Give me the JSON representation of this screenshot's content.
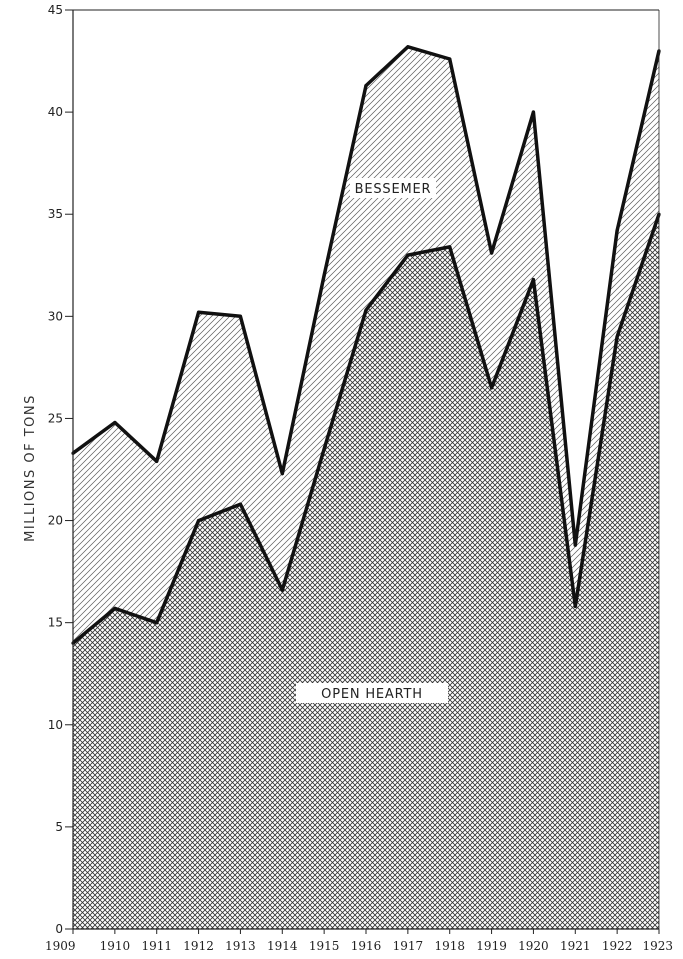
{
  "chart_data": {
    "type": "area",
    "stacked": true,
    "title": "",
    "xlabel": "",
    "ylabel": "MILLIONS OF TONS",
    "x": [
      "1909",
      "1910",
      "1911",
      "1912",
      "1913",
      "1914",
      "1915",
      "1916",
      "1917",
      "1918",
      "1919",
      "1920",
      "1921",
      "1922",
      "1923"
    ],
    "ylim": [
      0,
      45
    ],
    "yticks": [
      0,
      5,
      10,
      15,
      20,
      25,
      30,
      35,
      40,
      45
    ],
    "grid": false,
    "legend": "none",
    "series": [
      {
        "name": "OPEN HEARTH",
        "values": [
          14.0,
          15.7,
          15.0,
          20.0,
          20.8,
          16.6,
          23.5,
          30.3,
          33.0,
          33.4,
          26.5,
          31.8,
          15.8,
          29.0,
          35.0
        ],
        "pattern": "cross-hatch"
      },
      {
        "name": "BESSEMER",
        "values": [
          9.3,
          9.1,
          7.9,
          10.2,
          9.2,
          5.7,
          8.5,
          11.0,
          10.2,
          9.2,
          6.6,
          8.2,
          3.0,
          5.2,
          8.0
        ],
        "pattern": "diagonal-hatch"
      }
    ],
    "colors": {
      "line": "#111111",
      "hatch": "#555555",
      "background": "#ffffff"
    }
  }
}
